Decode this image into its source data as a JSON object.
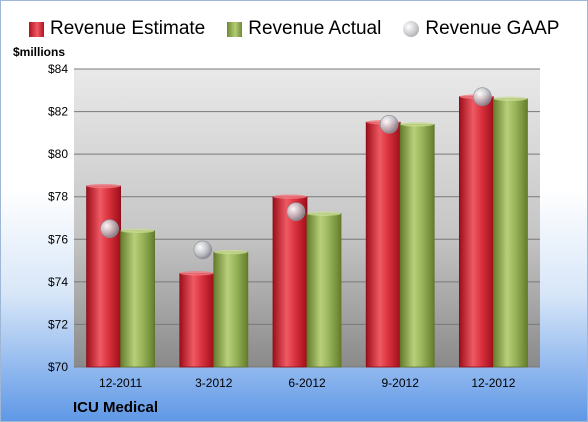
{
  "chart_data": {
    "type": "bar",
    "categories": [
      "12-2011",
      "3-2012",
      "6-2012",
      "9-2012",
      "12-2012"
    ],
    "series": [
      {
        "name": "Revenue Estimate",
        "kind": "bar",
        "color": "#d42a35",
        "values": [
          78.5,
          74.4,
          78.0,
          81.5,
          82.7
        ]
      },
      {
        "name": "Revenue Actual",
        "kind": "bar",
        "color": "#95b356",
        "values": [
          76.4,
          75.4,
          77.2,
          81.4,
          82.6
        ]
      },
      {
        "name": "Revenue GAAP",
        "kind": "marker",
        "color": "#b9bcc4",
        "values": [
          76.5,
          75.5,
          77.3,
          81.4,
          82.7
        ]
      }
    ],
    "ylabel": "$millions",
    "ylim": [
      70,
      84
    ],
    "yticks": [
      "$70",
      "$72",
      "$74",
      "$76",
      "$78",
      "$80",
      "$82",
      "$84"
    ],
    "grid": true,
    "legend": "top"
  },
  "company": "ICU Medical"
}
